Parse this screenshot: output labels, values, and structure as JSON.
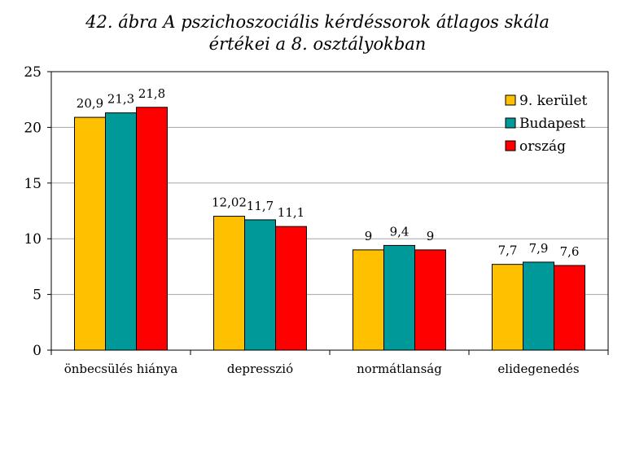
{
  "chart_data": {
    "type": "bar",
    "title_line1": "42. ábra A pszichoszociális kérdéssorok átlagos skála",
    "title_line2": "értékei a 8. osztályokban",
    "categories": [
      "önbecsülés hiánya",
      "depresszió",
      "normátlanság",
      "elidegenedés"
    ],
    "series": [
      {
        "name": "9. kerület",
        "color": "#FFC000",
        "values": [
          20.9,
          12.02,
          9,
          7.7
        ],
        "labels": [
          "20,9",
          "12,02",
          "9",
          "7,7"
        ]
      },
      {
        "name": "Budapest",
        "color": "#009999",
        "values": [
          21.3,
          11.7,
          9.4,
          7.9
        ],
        "labels": [
          "21,3",
          "11,7",
          "9,4",
          "7,9"
        ]
      },
      {
        "name": "ország",
        "color": "#FF0000",
        "values": [
          21.8,
          11.1,
          9,
          7.6
        ],
        "labels": [
          "21,8",
          "11,1",
          "9",
          "7,6"
        ]
      }
    ],
    "ylim": [
      0,
      25
    ],
    "yticks": [
      0,
      5,
      10,
      15,
      20,
      25
    ],
    "grid": true,
    "legend_position": "top-right"
  }
}
